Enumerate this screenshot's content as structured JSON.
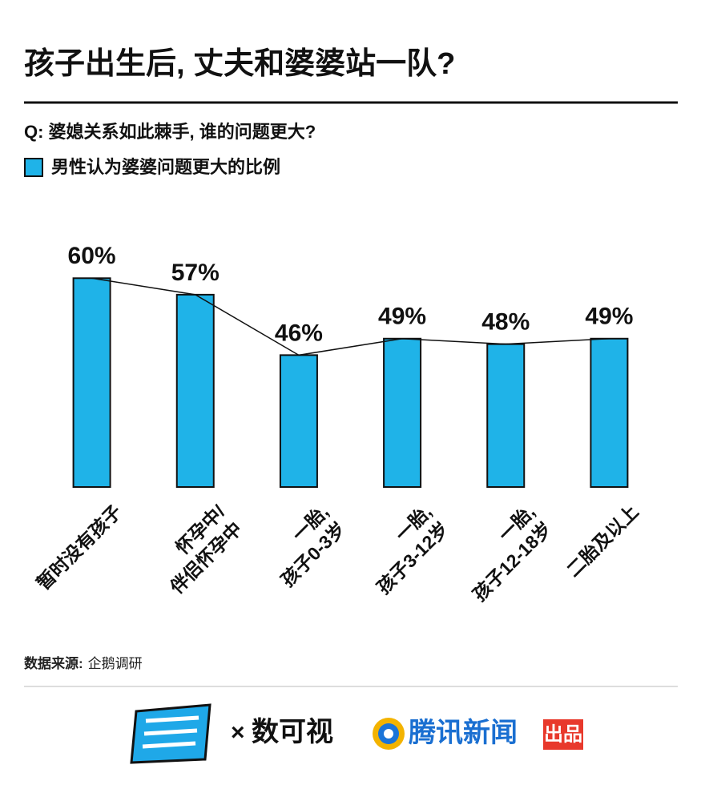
{
  "chart_data": {
    "type": "bar_line",
    "title": "孩子出生后, 丈夫和婆婆站一队?",
    "subtitle": "Q: 婆媳关系如此棘手, 谁的问题更大?",
    "series": [
      {
        "name": "男性认为婆婆问题更大的比例",
        "color": "#1fb3e8",
        "values": [
          60,
          57,
          46,
          49,
          48,
          49
        ],
        "value_labels": [
          "60%",
          "57%",
          "46%",
          "49%",
          "48%",
          "49%"
        ]
      }
    ],
    "categories": [
      "暂时没有孩子",
      "怀孕中/\n伴侣怀孕中",
      "一胎,\n孩子0-3岁",
      "一胎,\n孩子3-12岁",
      "一胎,\n孩子12-18岁",
      "二胎及以上"
    ],
    "ylim": [
      22,
      65
    ],
    "source_label": "数据来源:",
    "source": "企鹅调研",
    "footer": {
      "cross": "×",
      "partner": "数可视",
      "brand": "腾讯新闻",
      "badge": "出品"
    }
  }
}
